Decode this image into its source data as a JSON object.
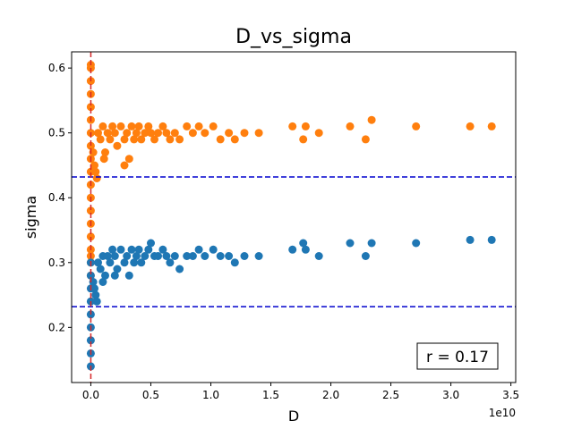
{
  "chart_data": {
    "type": "scatter",
    "title": "D_vs_sigma",
    "xlabel": "D",
    "ylabel": "sigma",
    "x_offset_label": "1e10",
    "xlim": [
      -1600000000.0,
      35400000000.0
    ],
    "ylim": [
      0.115,
      0.625
    ],
    "x_ticks": [
      0,
      5000000000.0,
      10000000000.0,
      15000000000.0,
      20000000000.0,
      25000000000.0,
      30000000000.0,
      35000000000.0
    ],
    "x_tick_labels": [
      "0.0",
      "0.5",
      "1.0",
      "1.5",
      "2.0",
      "2.5",
      "3.0",
      "3.5"
    ],
    "y_ticks": [
      0.2,
      0.3,
      0.4,
      0.5,
      0.6
    ],
    "y_tick_labels": [
      "0.2",
      "0.3",
      "0.4",
      "0.5",
      "0.6"
    ],
    "reference_lines": {
      "vertical_x": 0,
      "vertical_color": "#d62728",
      "horizontal_y": [
        0.432,
        0.232
      ],
      "horizontal_color": "#0000cd"
    },
    "annotation": "r = 0.17",
    "grid": false,
    "series": [
      {
        "color": "#ff7f0e",
        "points": [
          [
            0,
            0.6
          ],
          [
            0,
            0.58
          ],
          [
            0,
            0.56
          ],
          [
            0,
            0.54
          ],
          [
            0,
            0.52
          ],
          [
            0,
            0.5
          ],
          [
            0,
            0.48
          ],
          [
            0,
            0.46
          ],
          [
            0,
            0.44
          ],
          [
            0,
            0.42
          ],
          [
            0,
            0.4
          ],
          [
            0,
            0.38
          ],
          [
            0,
            0.36
          ],
          [
            0,
            0.34
          ],
          [
            0,
            0.32
          ],
          [
            0,
            0.3
          ],
          [
            0,
            0.28
          ],
          [
            0,
            0.31
          ],
          [
            0,
            0.605
          ],
          [
            200000000.0,
            0.47
          ],
          [
            400000000.0,
            0.44
          ],
          [
            600000000.0,
            0.5
          ],
          [
            800000000.0,
            0.49
          ],
          [
            1000000000.0,
            0.51
          ],
          [
            1200000000.0,
            0.47
          ],
          [
            1400000000.0,
            0.5
          ],
          [
            1600000000.0,
            0.49
          ],
          [
            1800000000.0,
            0.51
          ],
          [
            2000000000.0,
            0.5
          ],
          [
            2200000000.0,
            0.48
          ],
          [
            2500000000.0,
            0.51
          ],
          [
            2800000000.0,
            0.49
          ],
          [
            3000000000.0,
            0.5
          ],
          [
            3200000000.0,
            0.46
          ],
          [
            3400000000.0,
            0.51
          ],
          [
            3600000000.0,
            0.49
          ],
          [
            3800000000.0,
            0.5
          ],
          [
            4000000000.0,
            0.51
          ],
          [
            4200000000.0,
            0.49
          ],
          [
            4500000000.0,
            0.5
          ],
          [
            4800000000.0,
            0.51
          ],
          [
            5000000000.0,
            0.5
          ],
          [
            5300000000.0,
            0.49
          ],
          [
            5600000000.0,
            0.5
          ],
          [
            6000000000.0,
            0.51
          ],
          [
            6300000000.0,
            0.5
          ],
          [
            6600000000.0,
            0.49
          ],
          [
            7000000000.0,
            0.5
          ],
          [
            7400000000.0,
            0.49
          ],
          [
            8000000000.0,
            0.51
          ],
          [
            8500000000.0,
            0.5
          ],
          [
            9000000000.0,
            0.51
          ],
          [
            9500000000.0,
            0.5
          ],
          [
            10200000000.0,
            0.51
          ],
          [
            10800000000.0,
            0.49
          ],
          [
            11500000000.0,
            0.5
          ],
          [
            12000000000.0,
            0.49
          ],
          [
            12800000000.0,
            0.5
          ],
          [
            14000000000.0,
            0.5
          ],
          [
            16800000000.0,
            0.51
          ],
          [
            17700000000.0,
            0.49
          ],
          [
            17900000000.0,
            0.51
          ],
          [
            19000000000.0,
            0.5
          ],
          [
            21600000000.0,
            0.51
          ],
          [
            22900000000.0,
            0.49
          ],
          [
            23400000000.0,
            0.52
          ],
          [
            27100000000.0,
            0.51
          ],
          [
            31600000000.0,
            0.51
          ],
          [
            33400000000.0,
            0.51
          ],
          [
            300000000.0,
            0.45
          ],
          [
            500000000.0,
            0.43
          ],
          [
            2800000000.0,
            0.45
          ],
          [
            1100000000.0,
            0.46
          ]
        ]
      },
      {
        "color": "#1f77b4",
        "points": [
          [
            0,
            0.14
          ],
          [
            0,
            0.16
          ],
          [
            0,
            0.18
          ],
          [
            0,
            0.2
          ],
          [
            0,
            0.22
          ],
          [
            0,
            0.24
          ],
          [
            0,
            0.26
          ],
          [
            0,
            0.28
          ],
          [
            0,
            0.3
          ],
          [
            200000000.0,
            0.27
          ],
          [
            400000000.0,
            0.25
          ],
          [
            600000000.0,
            0.3
          ],
          [
            800000000.0,
            0.29
          ],
          [
            1000000000.0,
            0.31
          ],
          [
            1200000000.0,
            0.28
          ],
          [
            1400000000.0,
            0.31
          ],
          [
            1600000000.0,
            0.3
          ],
          [
            1800000000.0,
            0.32
          ],
          [
            2000000000.0,
            0.31
          ],
          [
            2200000000.0,
            0.29
          ],
          [
            2500000000.0,
            0.32
          ],
          [
            2800000000.0,
            0.3
          ],
          [
            3000000000.0,
            0.31
          ],
          [
            3200000000.0,
            0.28
          ],
          [
            3400000000.0,
            0.32
          ],
          [
            3600000000.0,
            0.3
          ],
          [
            3800000000.0,
            0.31
          ],
          [
            4000000000.0,
            0.32
          ],
          [
            4200000000.0,
            0.3
          ],
          [
            4500000000.0,
            0.31
          ],
          [
            4800000000.0,
            0.32
          ],
          [
            5000000000.0,
            0.33
          ],
          [
            5300000000.0,
            0.31
          ],
          [
            5600000000.0,
            0.31
          ],
          [
            6000000000.0,
            0.32
          ],
          [
            6300000000.0,
            0.31
          ],
          [
            6600000000.0,
            0.3
          ],
          [
            7000000000.0,
            0.31
          ],
          [
            7400000000.0,
            0.29
          ],
          [
            8000000000.0,
            0.31
          ],
          [
            8500000000.0,
            0.31
          ],
          [
            9000000000.0,
            0.32
          ],
          [
            9500000000.0,
            0.31
          ],
          [
            10200000000.0,
            0.32
          ],
          [
            10800000000.0,
            0.31
          ],
          [
            11500000000.0,
            0.31
          ],
          [
            12000000000.0,
            0.3
          ],
          [
            12800000000.0,
            0.31
          ],
          [
            14000000000.0,
            0.31
          ],
          [
            16800000000.0,
            0.32
          ],
          [
            17700000000.0,
            0.33
          ],
          [
            17900000000.0,
            0.32
          ],
          [
            19000000000.0,
            0.31
          ],
          [
            21600000000.0,
            0.33
          ],
          [
            22900000000.0,
            0.31
          ],
          [
            23400000000.0,
            0.33
          ],
          [
            27100000000.0,
            0.33
          ],
          [
            31600000000.0,
            0.335
          ],
          [
            33400000000.0,
            0.335
          ],
          [
            300000000.0,
            0.26
          ],
          [
            500000000.0,
            0.24
          ],
          [
            1000000000.0,
            0.27
          ],
          [
            2000000000.0,
            0.28
          ]
        ]
      }
    ]
  }
}
